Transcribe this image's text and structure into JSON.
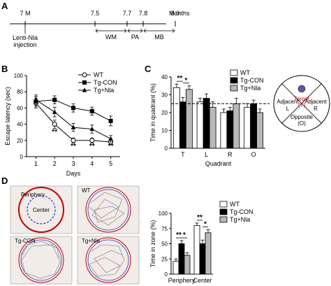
{
  "panels": {
    "a": "A",
    "b": "B",
    "c": "C",
    "d": "D"
  },
  "timeline": {
    "ticks": [
      "7 M",
      "7.5",
      "7.7",
      "7.8",
      "8.0"
    ],
    "tick_values": [
      7.0,
      7.5,
      7.7,
      7.8,
      8.0
    ],
    "unit_label": "Months",
    "injection_label_1": "Lenti-Nla",
    "injection_label_2": "injection",
    "phases": [
      {
        "label": "WM",
        "start": 7.5,
        "end": 7.7
      },
      {
        "label": "PA",
        "start": 7.7,
        "end": 7.8
      },
      {
        "label": "MB",
        "start": 7.8,
        "end": 8.0
      }
    ]
  },
  "chart_data": [
    {
      "type": "line",
      "panel": "B",
      "xlabel": "Days",
      "ylabel": "Escape latency (sec)",
      "x": [
        1,
        2,
        3,
        4,
        5
      ],
      "xlim": [
        0.5,
        5.5
      ],
      "ylim": [
        0,
        100
      ],
      "yticks": [
        0,
        20,
        40,
        60,
        80,
        100
      ],
      "legend_position": "top-right",
      "series": [
        {
          "name": "WT",
          "marker": "circle-open",
          "values": [
            66,
            40,
            20,
            20,
            18
          ],
          "errors": [
            6,
            5,
            3,
            3,
            3
          ]
        },
        {
          "name": "Tg-CON",
          "marker": "square-filled",
          "values": [
            68,
            70,
            60,
            56,
            44
          ],
          "errors": [
            6,
            5,
            5,
            5,
            6
          ]
        },
        {
          "name": "Tg+Nla",
          "marker": "triangle-filled",
          "values": [
            70,
            55,
            36,
            34,
            22
          ],
          "errors": [
            6,
            6,
            5,
            5,
            4
          ]
        }
      ],
      "annotations": [
        {
          "x": 2,
          "text": "**"
        },
        {
          "x": 3,
          "text": "**"
        },
        {
          "x": 4,
          "text": "**"
        },
        {
          "x": 5,
          "text": "**"
        }
      ]
    },
    {
      "type": "bar",
      "panel": "C",
      "xlabel": "Quadrant",
      "ylabel": "Time in quadrant (%)",
      "categories": [
        "T",
        "L",
        "R",
        "O"
      ],
      "ylim": [
        0,
        40
      ],
      "yticks": [
        0,
        10,
        20,
        30,
        40
      ],
      "reference_line": 25,
      "legend_position": "top-right",
      "series": [
        {
          "name": "WT",
          "color": "#ffffff",
          "values": [
            34,
            26,
            20,
            23
          ],
          "errors": [
            2,
            2,
            2,
            2
          ]
        },
        {
          "name": "Tg-CON",
          "color": "#000000",
          "values": [
            26,
            28,
            21,
            25
          ],
          "errors": [
            2.5,
            2.5,
            2,
            2
          ]
        },
        {
          "name": "Tg+Nla",
          "color": "#b8b8b8",
          "values": [
            33,
            23,
            25,
            20
          ],
          "errors": [
            2,
            3,
            3,
            2
          ]
        }
      ],
      "annotations": [
        {
          "between": [
            "WT",
            "Tg-CON"
          ],
          "category": "T",
          "text": "**"
        },
        {
          "between": [
            "Tg-CON",
            "Tg+Nla"
          ],
          "category": "T",
          "text": "*"
        }
      ]
    },
    {
      "type": "bar",
      "panel": "D",
      "ylabel": "Time in zone (%)",
      "categories": [
        "Periphery",
        "Center"
      ],
      "ylim": [
        0,
        100
      ],
      "yticks": [
        0,
        25,
        50,
        75,
        100
      ],
      "legend_position": "top-right",
      "series": [
        {
          "name": "WT",
          "color": "#ffffff",
          "values": [
            21,
            80
          ],
          "errors": [
            4,
            4
          ]
        },
        {
          "name": "Tg-CON",
          "color": "#000000",
          "values": [
            50,
            50
          ],
          "errors": [
            5,
            6
          ]
        },
        {
          "name": "Tg+Nla",
          "color": "#b8b8b8",
          "values": [
            31,
            68
          ],
          "errors": [
            4,
            5
          ]
        }
      ],
      "annotations": [
        {
          "between": [
            "WT",
            "Tg-CON"
          ],
          "category": "Periphery",
          "text": "**"
        },
        {
          "between": [
            "Tg-CON",
            "Tg+Nla"
          ],
          "category": "Periphery",
          "text": "*"
        },
        {
          "between": [
            "WT",
            "Tg-CON"
          ],
          "category": "Center",
          "text": "**"
        },
        {
          "between": [
            "Tg-CON",
            "Tg+Nla"
          ],
          "category": "Center",
          "text": "*"
        }
      ]
    }
  ],
  "quadrant_diagram": {
    "target_1": "Target",
    "target_2": "(T)",
    "left_1": "Adjacent",
    "left_2": "L",
    "right_1": "Adjacent",
    "right_2": "R",
    "opposite_1": "Opposite",
    "opposite_2": "(O)",
    "target_color": "#d00000",
    "platform_color": "#5a5aa8"
  },
  "open_field": {
    "periphery_label": "Periphery",
    "center_label": "Center",
    "wt_label": "WT",
    "tgcon_label": "Tg-CON",
    "tgnla_label": "Tg+Nla",
    "outer_color": "#c00000",
    "inner_color": "#3030c0"
  }
}
